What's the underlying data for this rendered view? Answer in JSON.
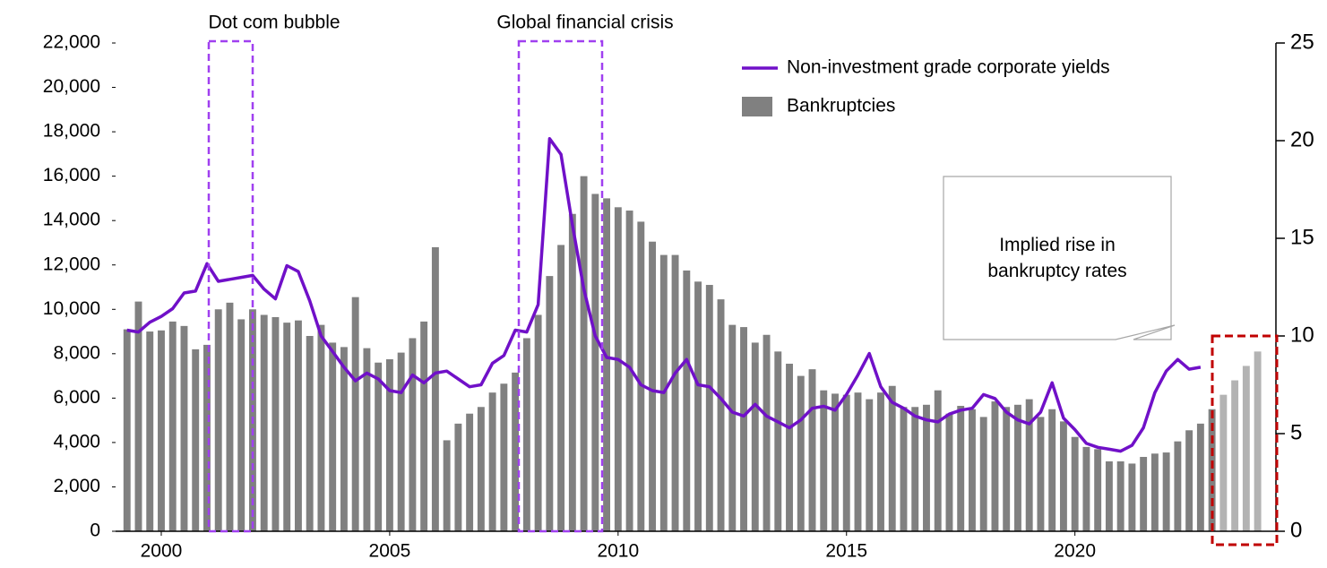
{
  "chart_data": {
    "type": "bar",
    "annotations": [
      "Dot com bubble",
      "Global financial crisis",
      "Implied rise in bankruptcy rates"
    ],
    "series": [
      {
        "name": "Non-investment grade corporate yields",
        "type": "line",
        "axis": "y2",
        "color": "#7010c8",
        "x": [
          1999.25,
          1999.5,
          1999.75,
          2000,
          2000.25,
          2000.5,
          2000.75,
          2001,
          2001.25,
          2001.5,
          2001.75,
          2002,
          2002.25,
          2002.5,
          2002.75,
          2003,
          2003.25,
          2003.5,
          2003.75,
          2004,
          2004.25,
          2004.5,
          2004.75,
          2005,
          2005.25,
          2005.5,
          2005.75,
          2006,
          2006.25,
          2006.5,
          2006.75,
          2007,
          2007.25,
          2007.5,
          2007.75,
          2008,
          2008.25,
          2008.5,
          2008.75,
          2009,
          2009.25,
          2009.5,
          2009.75,
          2010,
          2010.25,
          2010.5,
          2010.75,
          2011,
          2011.25,
          2011.5,
          2011.75,
          2012,
          2012.25,
          2012.5,
          2012.75,
          2013,
          2013.25,
          2013.5,
          2013.75,
          2014,
          2014.25,
          2014.5,
          2014.75,
          2015,
          2015.25,
          2015.5,
          2015.75,
          2016,
          2016.25,
          2016.5,
          2016.75,
          2017,
          2017.25,
          2017.5,
          2017.75,
          2018,
          2018.25,
          2018.5,
          2018.75,
          2019,
          2019.25,
          2019.5,
          2019.75,
          2020,
          2020.25,
          2020.5,
          2020.75,
          2021,
          2021.25,
          2021.5,
          2021.75,
          2022,
          2022.25,
          2022.5,
          2022.75
        ],
        "values": [
          10.3,
          10.2,
          10.7,
          11.0,
          11.4,
          12.2,
          12.3,
          13.7,
          12.8,
          12.9,
          13.0,
          13.1,
          12.4,
          11.9,
          13.6,
          13.3,
          11.8,
          10.0,
          9.2,
          8.4,
          7.7,
          8.1,
          7.8,
          7.2,
          7.1,
          8.0,
          7.6,
          8.1,
          8.2,
          7.8,
          7.4,
          7.5,
          8.6,
          9.0,
          10.3,
          10.2,
          11.6,
          20.1,
          19.3,
          15.7,
          12.4,
          10.0,
          8.9,
          8.8,
          8.4,
          7.5,
          7.2,
          7.1,
          8.1,
          8.8,
          7.5,
          7.4,
          6.8,
          6.1,
          5.9,
          6.5,
          5.9,
          5.6,
          5.3,
          5.7,
          6.3,
          6.4,
          6.2,
          7.0,
          8.0,
          9.1,
          7.4,
          6.6,
          6.3,
          5.9,
          5.7,
          5.6,
          6.0,
          6.2,
          6.3,
          7.0,
          6.8,
          6.1,
          5.7,
          5.5,
          6.1,
          7.6,
          5.8,
          5.2,
          4.5,
          4.3,
          4.2,
          4.1,
          4.4,
          5.3,
          7.1,
          8.2,
          8.8,
          8.3,
          8.4
        ]
      },
      {
        "name": "Bankruptcies",
        "type": "bar",
        "color": "#808080",
        "x": [
          1999.25,
          1999.5,
          1999.75,
          2000,
          2000.25,
          2000.5,
          2000.75,
          2001,
          2001.25,
          2001.5,
          2001.75,
          2002,
          2002.25,
          2002.5,
          2002.75,
          2003,
          2003.25,
          2003.5,
          2003.75,
          2004,
          2004.25,
          2004.5,
          2004.75,
          2005,
          2005.25,
          2005.5,
          2005.75,
          2006,
          2006.25,
          2006.5,
          2006.75,
          2007,
          2007.25,
          2007.5,
          2007.75,
          2008,
          2008.25,
          2008.5,
          2008.75,
          2009,
          2009.25,
          2009.5,
          2009.75,
          2010,
          2010.25,
          2010.5,
          2010.75,
          2011,
          2011.25,
          2011.5,
          2011.75,
          2012,
          2012.25,
          2012.5,
          2012.75,
          2013,
          2013.25,
          2013.5,
          2013.75,
          2014,
          2014.25,
          2014.5,
          2014.75,
          2015,
          2015.25,
          2015.5,
          2015.75,
          2016,
          2016.25,
          2016.5,
          2016.75,
          2017,
          2017.25,
          2017.5,
          2017.75,
          2018,
          2018.25,
          2018.5,
          2018.75,
          2019,
          2019.25,
          2019.5,
          2019.75,
          2020,
          2020.25,
          2020.5,
          2020.75,
          2021,
          2021.25,
          2021.5,
          2021.75,
          2022,
          2022.25,
          2022.5,
          2022.75,
          2023
        ],
        "values": [
          9100,
          10350,
          9000,
          9050,
          9450,
          9250,
          8200,
          8400,
          10000,
          10300,
          9550,
          10000,
          9750,
          9650,
          9400,
          9500,
          8800,
          9300,
          8500,
          8300,
          10550,
          8250,
          7600,
          7750,
          8050,
          8700,
          9450,
          12800,
          4100,
          4850,
          5300,
          5600,
          6250,
          6650,
          7150,
          8700,
          9750,
          11500,
          12900,
          14300,
          16000,
          15200,
          15000,
          14600,
          14450,
          13950,
          13050,
          12450,
          12450,
          11750,
          11250,
          11100,
          10450,
          9300,
          9200,
          8500,
          8850,
          8100,
          7550,
          7000,
          7300,
          6350,
          6200,
          6150,
          6250,
          5950,
          6250,
          6550,
          5600,
          5600,
          5700,
          6350,
          5300,
          5650,
          5500,
          5150,
          5850,
          5600,
          5700,
          5950,
          5150,
          5500,
          4950,
          4250,
          3800,
          3700,
          3150,
          3150,
          3050,
          3350,
          3500,
          3550,
          4050,
          4550,
          4850,
          5500
        ]
      }
    ],
    "projected": {
      "color": "#b3b3b3",
      "x": [
        2023.25,
        2023.5,
        2023.75,
        2024
      ],
      "values": [
        6150,
        6800,
        7450,
        8100
      ]
    },
    "xlim": [
      1999.0,
      2024.4
    ],
    "xticks": [
      2000,
      2005,
      2010,
      2015,
      2020
    ],
    "ylim": [
      0,
      22000
    ],
    "yticks": [
      0,
      {
        "value": 2000,
        "label": "2,000"
      },
      {
        "value": 4000,
        "label": "4,000"
      },
      {
        "value": 6000,
        "label": "6,000"
      },
      {
        "value": 8000,
        "label": "8,000"
      },
      {
        "value": 10000,
        "label": "10,000"
      },
      {
        "value": 12000,
        "label": "12,000"
      },
      {
        "value": 14000,
        "label": "14,000"
      },
      {
        "value": 16000,
        "label": "16,000"
      },
      {
        "value": 18000,
        "label": "18,000"
      },
      {
        "value": 20000,
        "label": "20,000"
      },
      {
        "value": 22000,
        "label": "22,000"
      }
    ],
    "y2lim": [
      0,
      25
    ],
    "y2ticks": [
      0,
      5,
      10,
      15,
      20,
      25
    ],
    "legend": "upper right"
  }
}
